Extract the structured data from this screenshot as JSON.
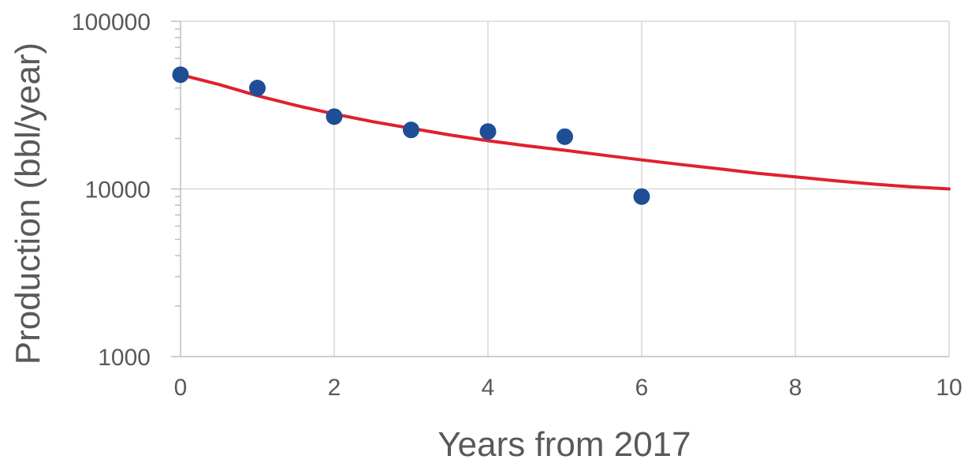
{
  "chart_data": {
    "type": "scatter",
    "title": "",
    "xlabel": "Years from 2017",
    "ylabel": "Production (bbl/year)",
    "xlim": [
      0,
      10
    ],
    "ylim": [
      1000,
      100000
    ],
    "y_scale": "log",
    "x_ticks": [
      "0",
      "2",
      "4",
      "6",
      "8",
      "10"
    ],
    "y_ticks": [
      "1000",
      "10000",
      "100000"
    ],
    "grid": true,
    "legend": "none",
    "series": [
      {
        "type": "scatter",
        "color": "#1F4E96",
        "x": [
          0,
          1,
          2,
          3,
          4,
          5,
          6
        ],
        "y": [
          48000,
          40000,
          27000,
          22500,
          22000,
          20500,
          9000
        ]
      },
      {
        "type": "line",
        "color": "#E0202F",
        "x": [
          0,
          0.5,
          1,
          1.5,
          2,
          2.5,
          3,
          3.5,
          4,
          4.5,
          5,
          5.5,
          6,
          6.5,
          7,
          7.5,
          8,
          8.5,
          9,
          9.5,
          10
        ],
        "y": [
          48000,
          42000,
          36000,
          31500,
          28000,
          25200,
          23000,
          21000,
          19400,
          18100,
          17000,
          15900,
          14900,
          14000,
          13200,
          12400,
          11800,
          11200,
          10700,
          10300,
          10000
        ]
      }
    ]
  }
}
